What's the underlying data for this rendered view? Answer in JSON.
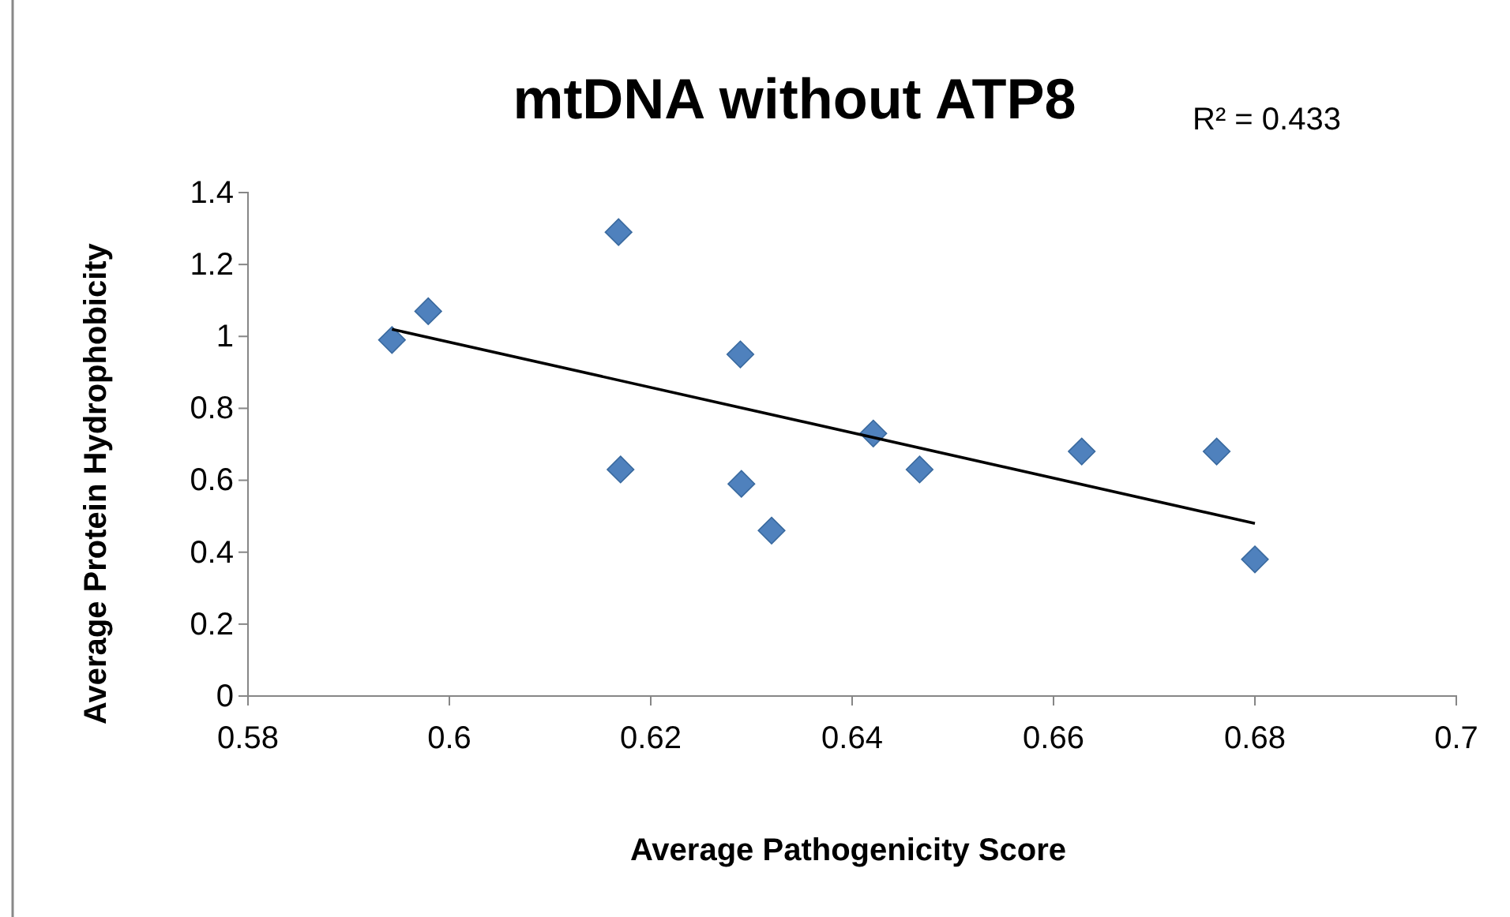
{
  "chart_data": {
    "type": "scatter",
    "title": "mtDNA without ATP8",
    "xlabel": "Average Pathogenicity Score",
    "ylabel": "Average Protein Hydrophobicity",
    "annotations": [
      "R² = 0.433"
    ],
    "xlim": [
      0.58,
      0.7
    ],
    "xticks": [
      0.58,
      0.6,
      0.62,
      0.64,
      0.66,
      0.68,
      0.7
    ],
    "ylim": [
      0,
      1.4
    ],
    "yticks": [
      0,
      0.2,
      0.4,
      0.6,
      0.8,
      1,
      1.2,
      1.4
    ],
    "grid": false,
    "series": [
      {
        "marker": "diamond",
        "color": "#4f81bd",
        "x": [
          0.5943,
          0.5979,
          0.6168,
          0.617,
          0.6289,
          0.629,
          0.632,
          0.6421,
          0.6467,
          0.6628,
          0.6762,
          0.68
        ],
        "values": [
          0.99,
          1.07,
          1.29,
          0.63,
          0.95,
          0.59,
          0.46,
          0.73,
          0.63,
          0.68,
          0.68,
          0.38
        ]
      },
      {
        "type": "line",
        "color": "#000000",
        "x": [
          0.5943,
          0.68
        ],
        "values": [
          1.02,
          0.48
        ]
      }
    ]
  }
}
